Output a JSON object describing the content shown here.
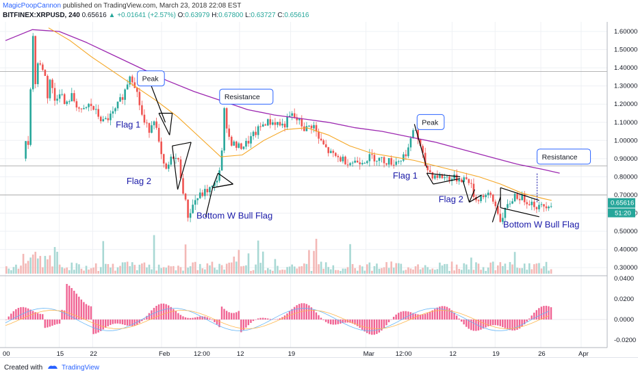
{
  "header": {
    "author": "MagicPoopCannon",
    "published_text": "published on TradingView.com, March 23, 2018 22:08 EST",
    "symbol": "BITFINEX:XRPUSD, 240",
    "last": "0.65616",
    "change_arrow": "▲",
    "change": "+0.01641 (+2.57%)",
    "o_label": "O:",
    "o_value": "0.63979",
    "h_label": "H:",
    "h_value": "0.67800",
    "l_label": "L:",
    "l_value": "0.63727",
    "c_label": "C:",
    "c_value": "0.65616"
  },
  "footer": {
    "created_with": "Created with",
    "brand": "TradingView",
    "logo_icon": "tradingview-logo-icon"
  },
  "colors": {
    "up": "#26a69a",
    "down": "#ef5350",
    "ma_slow": "#9c27b0",
    "ma_fast": "#f5a623",
    "annotation_text": "#1a1aa8",
    "callout_border": "#2962ff"
  },
  "chart_data": [
    {
      "type": "candlestick",
      "title": "BITFINEX:XRPUSD, 240",
      "price_ticks": [
        "1.60000",
        "1.50000",
        "1.40000",
        "1.30000",
        "1.20000",
        "1.10000",
        "1.00000",
        "0.90000",
        "0.80000",
        "0.70000",
        "0.60000",
        "0.50000",
        "0.40000",
        "0.30000"
      ],
      "last_price_label": "0.65616",
      "countdown_label": "51:20",
      "x_ticks": [
        "00",
        "15",
        "22",
        "Feb",
        "12:00",
        "12",
        "19",
        "Mar",
        "12:00",
        "12",
        "19",
        "26",
        "Apr"
      ],
      "price_path": [
        [
          0.35,
          0.9
        ],
        [
          0.38,
          1.15
        ],
        [
          0.4,
          0.95
        ],
        [
          0.45,
          1.3
        ],
        [
          0.5,
          1.6
        ],
        [
          0.55,
          1.25
        ],
        [
          0.6,
          1.5
        ],
        [
          0.65,
          1.35
        ],
        [
          0.7,
          1.45
        ],
        [
          0.75,
          1.2
        ],
        [
          0.8,
          1.35
        ],
        [
          0.9,
          1.22
        ],
        [
          1.0,
          1.28
        ],
        [
          1.1,
          1.18
        ],
        [
          1.2,
          1.25
        ],
        [
          1.4,
          1.15
        ],
        [
          1.55,
          1.2
        ],
        [
          1.8,
          1.1
        ],
        [
          2.0,
          1.15
        ],
        [
          2.2,
          1.27
        ],
        [
          2.3,
          1.37
        ],
        [
          2.4,
          1.3
        ],
        [
          2.55,
          1.1
        ],
        [
          2.65,
          1.06
        ],
        [
          2.75,
          1.13
        ],
        [
          2.85,
          0.95
        ],
        [
          2.95,
          0.82
        ],
        [
          3.1,
          0.92
        ],
        [
          3.2,
          0.88
        ],
        [
          3.3,
          0.7
        ],
        [
          3.38,
          0.58
        ],
        [
          3.5,
          0.67
        ],
        [
          3.62,
          0.7
        ],
        [
          3.75,
          0.73
        ],
        [
          3.85,
          0.74
        ],
        [
          3.95,
          0.82
        ],
        [
          4.02,
          0.96
        ],
        [
          4.05,
          1.16
        ],
        [
          4.15,
          1.0
        ],
        [
          4.3,
          0.96
        ],
        [
          4.45,
          0.98
        ],
        [
          4.6,
          1.03
        ],
        [
          4.8,
          1.1
        ],
        [
          5.0,
          1.1
        ],
        [
          5.15,
          1.08
        ],
        [
          5.3,
          1.14
        ],
        [
          5.45,
          1.1
        ],
        [
          5.55,
          1.06
        ],
        [
          5.7,
          1.09
        ],
        [
          5.8,
          1.01
        ],
        [
          5.95,
          0.95
        ],
        [
          6.05,
          0.92
        ],
        [
          6.2,
          0.9
        ],
        [
          6.4,
          0.88
        ],
        [
          6.6,
          0.89
        ],
        [
          6.8,
          0.91
        ],
        [
          7.0,
          0.89
        ],
        [
          7.2,
          0.88
        ],
        [
          7.35,
          0.9
        ],
        [
          7.5,
          0.97
        ],
        [
          7.58,
          1.09
        ],
        [
          7.7,
          0.95
        ],
        [
          7.8,
          0.85
        ],
        [
          7.92,
          0.81
        ],
        [
          8.1,
          0.8
        ],
        [
          8.3,
          0.79
        ],
        [
          8.5,
          0.79
        ],
        [
          8.6,
          0.78
        ],
        [
          8.72,
          0.67
        ],
        [
          8.85,
          0.7
        ],
        [
          9.0,
          0.69
        ],
        [
          9.12,
          0.62
        ],
        [
          9.2,
          0.55
        ],
        [
          9.3,
          0.63
        ],
        [
          9.45,
          0.7
        ],
        [
          9.6,
          0.68
        ],
        [
          9.75,
          0.66
        ],
        [
          9.9,
          0.63
        ],
        [
          10.05,
          0.65
        ],
        [
          10.15,
          0.656
        ]
      ],
      "ma_fast": [
        [
          0.8,
          1.62
        ],
        [
          1.2,
          1.55
        ],
        [
          1.6,
          1.46
        ],
        [
          2.0,
          1.38
        ],
        [
          2.4,
          1.3
        ],
        [
          2.8,
          1.22
        ],
        [
          3.2,
          1.13
        ],
        [
          3.6,
          1.02
        ],
        [
          4.0,
          0.91
        ],
        [
          4.4,
          0.92
        ],
        [
          4.8,
          1.0
        ],
        [
          5.2,
          1.06
        ],
        [
          5.6,
          1.07
        ],
        [
          6.0,
          1.03
        ],
        [
          6.4,
          0.97
        ],
        [
          6.8,
          0.93
        ],
        [
          7.2,
          0.91
        ],
        [
          7.6,
          0.89
        ],
        [
          8.0,
          0.86
        ],
        [
          8.4,
          0.83
        ],
        [
          8.8,
          0.8
        ],
        [
          9.2,
          0.76
        ],
        [
          9.6,
          0.71
        ],
        [
          10.0,
          0.68
        ],
        [
          10.15,
          0.67
        ]
      ],
      "ma_slow": [
        [
          0.0,
          1.55
        ],
        [
          0.5,
          1.61
        ],
        [
          1.0,
          1.6
        ],
        [
          1.5,
          1.54
        ],
        [
          2.0,
          1.47
        ],
        [
          2.5,
          1.4
        ],
        [
          3.0,
          1.33
        ],
        [
          3.5,
          1.27
        ],
        [
          4.0,
          1.22
        ],
        [
          4.5,
          1.17
        ],
        [
          5.0,
          1.14
        ],
        [
          5.5,
          1.12
        ],
        [
          6.0,
          1.1
        ],
        [
          6.5,
          1.07
        ],
        [
          7.0,
          1.05
        ],
        [
          7.5,
          1.02
        ],
        [
          8.0,
          0.99
        ],
        [
          8.5,
          0.95
        ],
        [
          9.0,
          0.91
        ],
        [
          9.5,
          0.87
        ],
        [
          10.0,
          0.84
        ],
        [
          10.3,
          0.82
        ]
      ],
      "horizontal_levels": [
        1.38,
        0.86,
        0.7
      ],
      "annotations": [
        {
          "text": "Flag 1",
          "x": 2.05,
          "y": 1.07
        },
        {
          "text": "Flag 2",
          "x": 2.25,
          "y": 0.76
        },
        {
          "text": "Bottom W Bull Flag",
          "x": 3.55,
          "y": 0.57
        },
        {
          "text": "Flag 1",
          "x": 7.2,
          "y": 0.79
        },
        {
          "text": "Flag 2",
          "x": 8.05,
          "y": 0.66
        },
        {
          "text": "Bottom W Bull Flag",
          "x": 9.25,
          "y": 0.52
        }
      ],
      "callouts": [
        {
          "text": "Peak",
          "x": 2.45,
          "y": 1.33
        },
        {
          "text": "Resistance",
          "x": 3.98,
          "y": 1.23
        },
        {
          "text": "Peak",
          "x": 7.65,
          "y": 1.09
        },
        {
          "text": "Resistance",
          "x": 9.88,
          "y": 0.9
        }
      ]
    },
    {
      "type": "bar",
      "title": "Volume",
      "note": "volume histogram in lower part of price pane"
    },
    {
      "type": "bar",
      "title": "MACD",
      "y_ticks": [
        "0.0400",
        "0.0200",
        "0.0000",
        "-0.0200"
      ],
      "ylim": [
        -0.025,
        0.042
      ]
    }
  ]
}
